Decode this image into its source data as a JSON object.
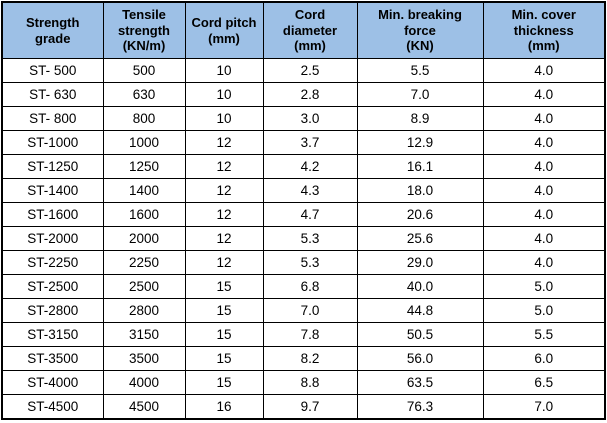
{
  "colors": {
    "header_background": "#9DC0E6",
    "border": "#000000",
    "text": "#000000",
    "body_background": "#FFFFFF"
  },
  "table": {
    "columns": [
      "Strength\ngrade",
      "Tensile\nstrength\n(KN/m)",
      "Cord pitch\n(mm)",
      "Cord\ndiameter\n(mm)",
      "Min. breaking\nforce\n(KN)",
      "Min. cover\nthickness\n(mm)"
    ],
    "rows": [
      [
        "ST- 500",
        "500",
        "10",
        "2.5",
        "5.5",
        "4.0"
      ],
      [
        "ST- 630",
        "630",
        "10",
        "2.8",
        "7.0",
        "4.0"
      ],
      [
        "ST- 800",
        "800",
        "10",
        "3.0",
        "8.9",
        "4.0"
      ],
      [
        "ST-1000",
        "1000",
        "12",
        "3.7",
        "12.9",
        "4.0"
      ],
      [
        "ST-1250",
        "1250",
        "12",
        "4.2",
        "16.1",
        "4.0"
      ],
      [
        "ST-1400",
        "1400",
        "12",
        "4.3",
        "18.0",
        "4.0"
      ],
      [
        "ST-1600",
        "1600",
        "12",
        "4.7",
        "20.6",
        "4.0"
      ],
      [
        "ST-2000",
        "2000",
        "12",
        "5.3",
        "25.6",
        "4.0"
      ],
      [
        "ST-2250",
        "2250",
        "12",
        "5.3",
        "29.0",
        "4.0"
      ],
      [
        "ST-2500",
        "2500",
        "15",
        "6.8",
        "40.0",
        "5.0"
      ],
      [
        "ST-2800",
        "2800",
        "15",
        "7.0",
        "44.8",
        "5.0"
      ],
      [
        "ST-3150",
        "3150",
        "15",
        "7.8",
        "50.5",
        "5.5"
      ],
      [
        "ST-3500",
        "3500",
        "15",
        "8.2",
        "56.0",
        "6.0"
      ],
      [
        "ST-4000",
        "4000",
        "15",
        "8.8",
        "63.5",
        "6.5"
      ],
      [
        "ST-4500",
        "4500",
        "16",
        "9.7",
        "76.3",
        "7.0"
      ]
    ]
  },
  "chart_data": {
    "type": "table",
    "title": "",
    "columns": [
      "Strength grade",
      "Tensile strength (KN/m)",
      "Cord pitch (mm)",
      "Cord diameter (mm)",
      "Min. breaking force (KN)",
      "Min. cover thickness (mm)"
    ],
    "rows": [
      [
        "ST- 500",
        500,
        10,
        2.5,
        5.5,
        4.0
      ],
      [
        "ST- 630",
        630,
        10,
        2.8,
        7.0,
        4.0
      ],
      [
        "ST- 800",
        800,
        10,
        3.0,
        8.9,
        4.0
      ],
      [
        "ST-1000",
        1000,
        12,
        3.7,
        12.9,
        4.0
      ],
      [
        "ST-1250",
        1250,
        12,
        4.2,
        16.1,
        4.0
      ],
      [
        "ST-1400",
        1400,
        12,
        4.3,
        18.0,
        4.0
      ],
      [
        "ST-1600",
        1600,
        12,
        4.7,
        20.6,
        4.0
      ],
      [
        "ST-2000",
        2000,
        12,
        5.3,
        25.6,
        4.0
      ],
      [
        "ST-2250",
        2250,
        12,
        5.3,
        29.0,
        4.0
      ],
      [
        "ST-2500",
        2500,
        15,
        6.8,
        40.0,
        5.0
      ],
      [
        "ST-2800",
        2800,
        15,
        7.0,
        44.8,
        5.0
      ],
      [
        "ST-3150",
        3150,
        15,
        7.8,
        50.5,
        5.5
      ],
      [
        "ST-3500",
        3500,
        15,
        8.2,
        56.0,
        6.0
      ],
      [
        "ST-4000",
        4000,
        15,
        8.8,
        63.5,
        6.5
      ],
      [
        "ST-4500",
        4500,
        16,
        9.7,
        76.3,
        7.0
      ]
    ]
  }
}
